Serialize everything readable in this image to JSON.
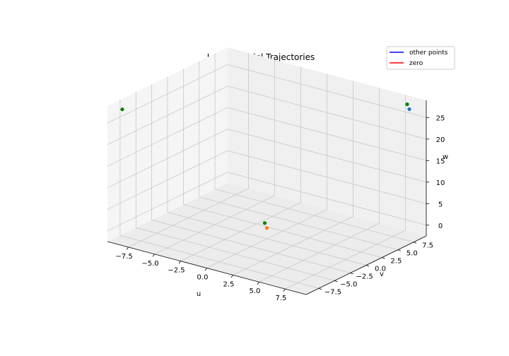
{
  "chart_data": {
    "type": "scatter",
    "projection": "3d",
    "title": "Lorenz Model Trajectories",
    "xlabel": "u",
    "ylabel": "v",
    "zlabel": "w",
    "xlim": [
      -9.5,
      9.5
    ],
    "ylim": [
      -9.5,
      9.5
    ],
    "zlim": [
      -2.5,
      29
    ],
    "xticks": [
      -7.5,
      -5.0,
      -2.5,
      0.0,
      2.5,
      5.0,
      7.5
    ],
    "yticks": [
      -7.5,
      -5.0,
      -2.5,
      0.0,
      2.5,
      5.0,
      7.5
    ],
    "zticks": [
      0,
      5,
      10,
      15,
      20,
      25
    ],
    "xtick_labels": [
      "−7.5",
      "−5.0",
      "−2.5",
      "0.0",
      "2.5",
      "5.0",
      "7.5"
    ],
    "ytick_labels": [
      "−7.5",
      "−5.0",
      "−2.5",
      "0.0",
      "2.5",
      "5.0",
      "7.5"
    ],
    "ztick_labels": [
      "0",
      "5",
      "10",
      "15",
      "20",
      "25"
    ],
    "grid": true,
    "legend_position": "top-right",
    "legend": [
      {
        "label": "other points",
        "color": "#0000ff"
      },
      {
        "label": "zero",
        "color": "#ff0000"
      }
    ],
    "points": [
      {
        "x": 8.49,
        "y": 8.49,
        "z": 27.0,
        "color": "#1f77b4"
      },
      {
        "x": 0.0,
        "y": 0.0,
        "z": 0.0,
        "color": "#ff7f0e"
      },
      {
        "x": -8.49,
        "y": -8.49,
        "z": 27.0,
        "color": "#008000"
      },
      {
        "x": 8.49,
        "y": 8.49,
        "z": 27.0,
        "color": "#008000"
      },
      {
        "x": 0.0,
        "y": 0.0,
        "z": 0.0,
        "color": "#008000"
      }
    ]
  }
}
